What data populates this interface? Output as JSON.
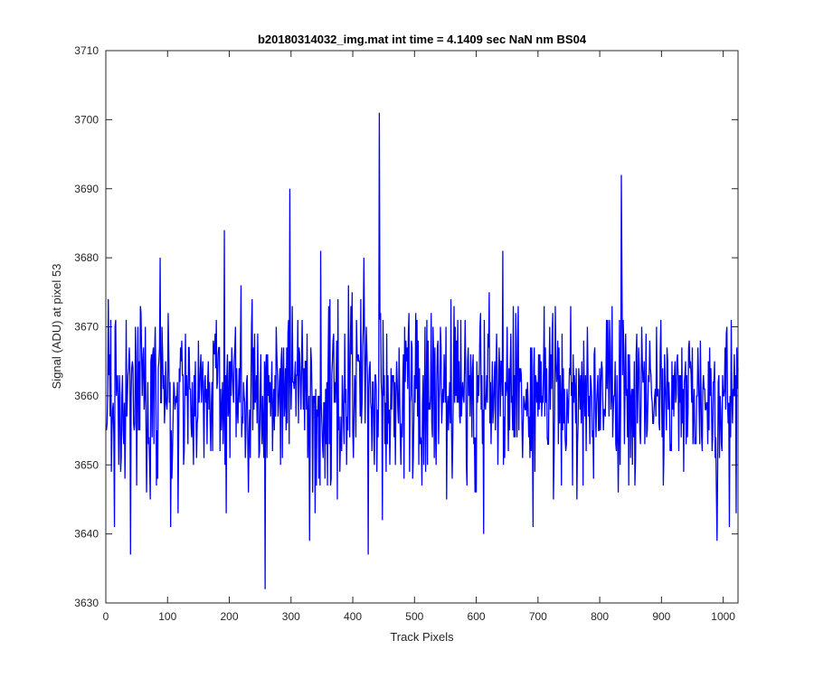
{
  "chart_data": {
    "type": "line",
    "title": "b20180314032_img.mat int time = 4.1409 sec  NaN nm BS04",
    "xlabel": "Track Pixels",
    "ylabel": "Signal (ADU) at pixel 53",
    "xlim": [
      0,
      1024
    ],
    "ylim": [
      3630,
      3710
    ],
    "xticks": [
      0,
      100,
      200,
      300,
      400,
      500,
      600,
      700,
      800,
      900,
      1000
    ],
    "yticks": [
      3630,
      3640,
      3650,
      3660,
      3670,
      3680,
      3690,
      3700,
      3710
    ],
    "xtick_labels": [
      "0",
      "100",
      "200",
      "300",
      "400",
      "500",
      "600",
      "700",
      "800",
      "900",
      "1000"
    ],
    "ytick_labels": [
      "3630",
      "3640",
      "3650",
      "3660",
      "3670",
      "3680",
      "3690",
      "3700",
      "3710"
    ],
    "grid": false,
    "line_color": "#0000ff",
    "series": [
      {
        "x_start": 1,
        "x_step": 1,
        "count": 1024,
        "mean": 3660,
        "std": 6.5,
        "min": 3632,
        "max": 3701,
        "highlights": [
          {
            "x": 9,
            "y": 3649
          },
          {
            "x": 14,
            "y": 3641
          },
          {
            "x": 40,
            "y": 3637
          },
          {
            "x": 88,
            "y": 3680
          },
          {
            "x": 105,
            "y": 3641
          },
          {
            "x": 192,
            "y": 3684
          },
          {
            "x": 195,
            "y": 3643
          },
          {
            "x": 258,
            "y": 3632
          },
          {
            "x": 298,
            "y": 3690
          },
          {
            "x": 330,
            "y": 3639
          },
          {
            "x": 348,
            "y": 3681
          },
          {
            "x": 418,
            "y": 3680
          },
          {
            "x": 425,
            "y": 3637
          },
          {
            "x": 443,
            "y": 3701
          },
          {
            "x": 448,
            "y": 3642
          },
          {
            "x": 612,
            "y": 3640
          },
          {
            "x": 643,
            "y": 3681
          },
          {
            "x": 692,
            "y": 3641
          },
          {
            "x": 835,
            "y": 3692
          },
          {
            "x": 990,
            "y": 3639
          },
          {
            "x": 1010,
            "y": 3641
          }
        ]
      }
    ]
  }
}
